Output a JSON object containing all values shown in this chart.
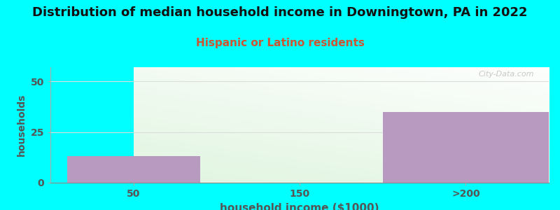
{
  "title": "Distribution of median household income in Downingtown, PA in 2022",
  "subtitle": "Hispanic or Latino residents",
  "xlabel": "household income ($1000)",
  "ylabel": "households",
  "background_color": "#00FFFF",
  "bar_color": "#b899c0",
  "bar_edge_color": "#ffffff",
  "categories": [
    "50",
    "150",
    ">200"
  ],
  "bar_values": [
    13,
    0,
    35
  ],
  "ylim": [
    0,
    57
  ],
  "yticks": [
    0,
    25,
    50
  ],
  "grid_color": "#dddddd",
  "title_fontsize": 13,
  "subtitle_fontsize": 11,
  "subtitle_color": "#cc5533",
  "watermark": "City-Data.com",
  "tick_color": "#555555",
  "label_color": "#555555"
}
